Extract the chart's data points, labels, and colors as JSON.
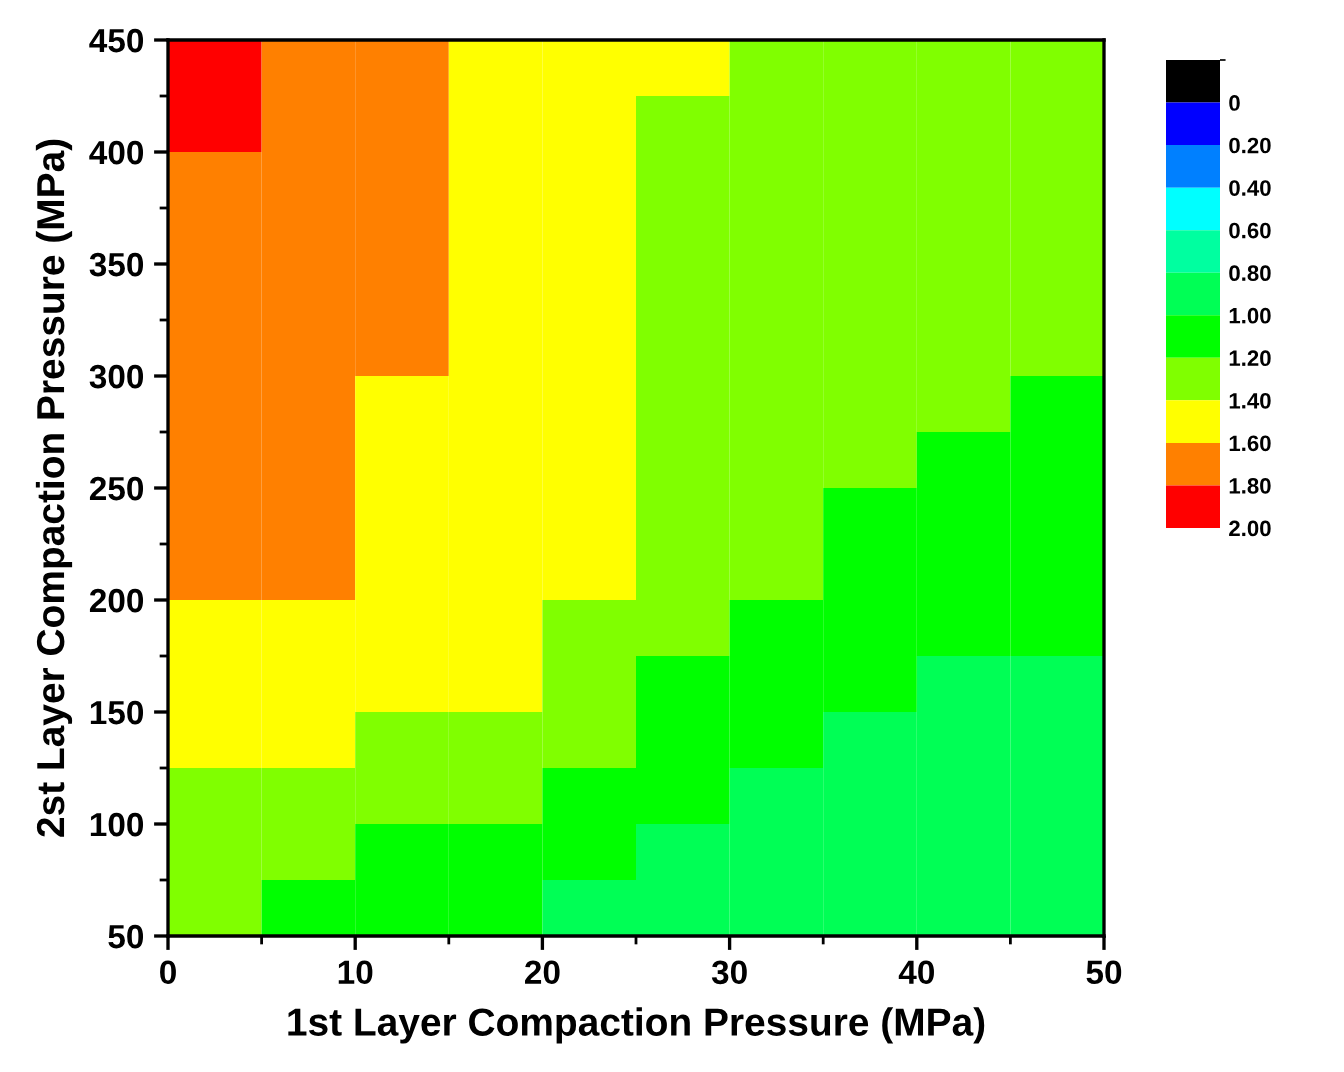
{
  "chart_data": {
    "type": "heatmap",
    "xlabel": "1st Layer Compaction Pressure (MPa)",
    "ylabel": "2st Layer Compaction Pressure (MPa)",
    "x": [
      2.5,
      7.5,
      12.5,
      17.5,
      22.5,
      27.5,
      32.5,
      37.5,
      42.5,
      47.5
    ],
    "y": [
      437.5,
      412.5,
      387.5,
      362.5,
      337.5,
      312.5,
      287.5,
      262.5,
      237.5,
      212.5,
      187.5,
      162.5,
      137.5,
      112.5,
      87.5,
      62.5
    ],
    "cells": [
      [
        1.9,
        1.7,
        1.7,
        1.5,
        1.5,
        1.5,
        1.3,
        1.3,
        1.3,
        1.3
      ],
      [
        1.9,
        1.7,
        1.7,
        1.5,
        1.5,
        1.3,
        1.3,
        1.3,
        1.3,
        1.3
      ],
      [
        1.7,
        1.7,
        1.7,
        1.5,
        1.5,
        1.3,
        1.3,
        1.3,
        1.3,
        1.3
      ],
      [
        1.7,
        1.7,
        1.7,
        1.5,
        1.5,
        1.3,
        1.3,
        1.3,
        1.3,
        1.3
      ],
      [
        1.7,
        1.7,
        1.7,
        1.5,
        1.5,
        1.3,
        1.3,
        1.3,
        1.3,
        1.3
      ],
      [
        1.7,
        1.7,
        1.7,
        1.5,
        1.5,
        1.3,
        1.3,
        1.3,
        1.3,
        1.3
      ],
      [
        1.7,
        1.7,
        1.5,
        1.5,
        1.5,
        1.3,
        1.3,
        1.3,
        1.3,
        1.1
      ],
      [
        1.7,
        1.7,
        1.5,
        1.5,
        1.5,
        1.3,
        1.3,
        1.3,
        1.1,
        1.1
      ],
      [
        1.7,
        1.7,
        1.5,
        1.5,
        1.5,
        1.3,
        1.3,
        1.1,
        1.1,
        1.1
      ],
      [
        1.7,
        1.7,
        1.5,
        1.5,
        1.5,
        1.3,
        1.3,
        1.1,
        1.1,
        1.1
      ],
      [
        1.5,
        1.5,
        1.5,
        1.5,
        1.3,
        1.3,
        1.1,
        1.1,
        1.1,
        1.1
      ],
      [
        1.5,
        1.5,
        1.5,
        1.5,
        1.3,
        1.1,
        1.1,
        1.1,
        0.9,
        0.9
      ],
      [
        1.5,
        1.5,
        1.3,
        1.3,
        1.3,
        1.1,
        1.1,
        0.9,
        0.9,
        0.9
      ],
      [
        1.3,
        1.3,
        1.3,
        1.3,
        1.1,
        1.1,
        0.9,
        0.9,
        0.9,
        0.9
      ],
      [
        1.3,
        1.3,
        1.1,
        1.1,
        1.1,
        0.9,
        0.9,
        0.9,
        0.9,
        0.9
      ],
      [
        1.3,
        1.1,
        1.1,
        1.1,
        0.9,
        0.9,
        0.9,
        0.9,
        0.9,
        0.9
      ]
    ],
    "colors": [
      "#000000",
      "#0000ff",
      "#0080ff",
      "#00ffff",
      "#00ffa0",
      "#00ff55",
      "#00ff00",
      "#80ff00",
      "#ffff00",
      "#ff8000",
      "#ff0000"
    ],
    "clim": [
      -0.2,
      2.0
    ],
    "cticks": [
      0,
      {
        "value": 0.2,
        "label": "0.20"
      },
      {
        "value": 0.4,
        "label": "0.40"
      },
      {
        "value": 0.6,
        "label": "0.60"
      },
      {
        "value": 0.8,
        "label": "0.80"
      },
      {
        "value": 1.0,
        "label": "1.00"
      },
      {
        "value": 1.2,
        "label": "1.20"
      },
      {
        "value": 1.4,
        "label": "1.40"
      },
      {
        "value": 1.6,
        "label": "1.60"
      },
      {
        "value": 1.8,
        "label": "1.80"
      },
      {
        "value": 2.0,
        "label": "2.00"
      }
    ],
    "xlim": [
      0,
      50
    ],
    "xticks": [
      0,
      10,
      20,
      30,
      40,
      50
    ],
    "ylim": [
      50,
      450
    ],
    "yticks": [
      50,
      100,
      150,
      200,
      250,
      300,
      350,
      400,
      450
    ]
  }
}
